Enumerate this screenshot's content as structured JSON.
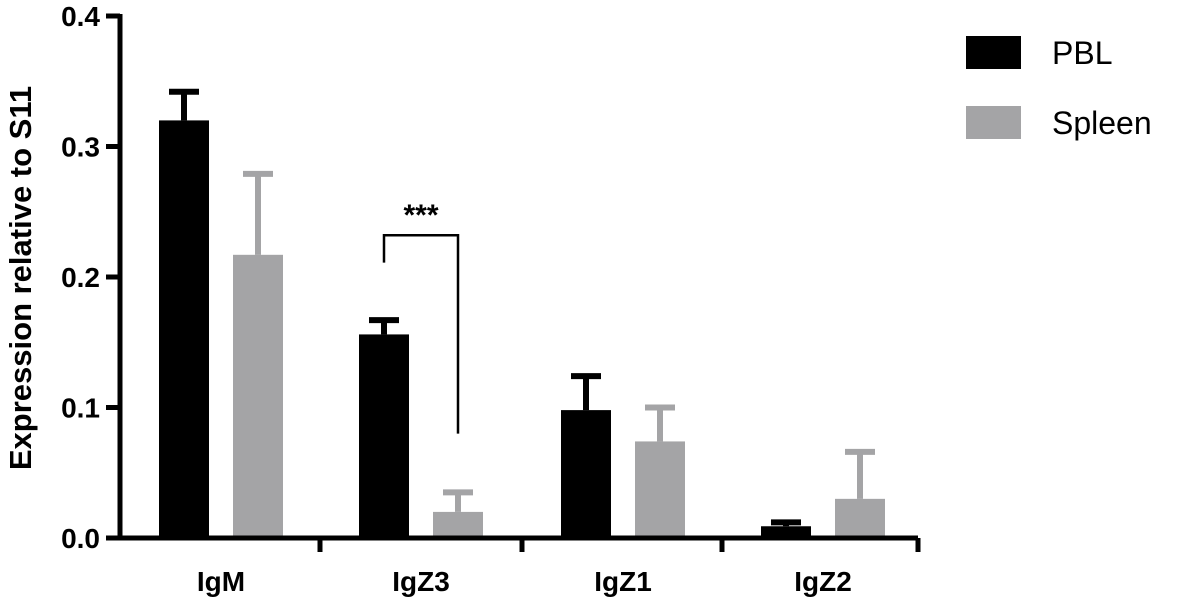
{
  "chart_data": {
    "type": "bar",
    "categories": [
      "IgM",
      "IgZ3",
      "IgZ1",
      "IgZ2"
    ],
    "series": [
      {
        "name": "PBL",
        "color": "#000000",
        "values": [
          0.32,
          0.156,
          0.098,
          0.009
        ],
        "errors": [
          0.022,
          0.011,
          0.026,
          0.003
        ]
      },
      {
        "name": "Spleen",
        "color": "#a4a4a6",
        "values": [
          0.217,
          0.02,
          0.074,
          0.03
        ],
        "errors": [
          0.062,
          0.015,
          0.026,
          0.036
        ]
      }
    ],
    "ylabel": "Expression relative to S11",
    "xlabel": "",
    "title": "",
    "ylim": [
      0,
      0.4
    ],
    "yticks": [
      "0.0",
      "0.1",
      "0.2",
      "0.3",
      "0.4"
    ],
    "legend_position": "top-right",
    "grid": false,
    "annotations": [
      {
        "text": "***",
        "category": "IgZ3",
        "from_series": 0,
        "to_series": 1,
        "bracket_top": 0.232,
        "left_end": 0.211,
        "right_end": 0.08
      }
    ]
  }
}
